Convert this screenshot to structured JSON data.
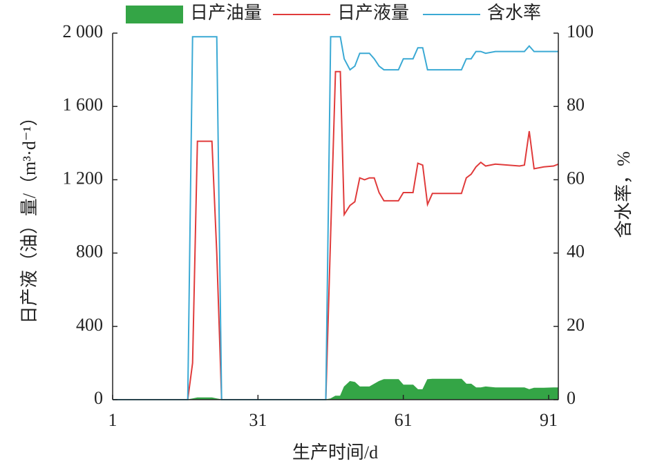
{
  "chart_data": {
    "type": "line",
    "x_label": "生产时间/d",
    "y_label": "日产液（油）量/（m³·d⁻¹）",
    "y2_label": "含水率，%",
    "xlim": [
      1,
      93
    ],
    "xticks": [
      1,
      31,
      61,
      91
    ],
    "ylim": [
      0,
      2000
    ],
    "yticks": [
      0,
      {
        "value": 400,
        "label": "400"
      },
      {
        "value": 800,
        "label": "800"
      },
      {
        "value": 1200,
        "label": "1 200"
      },
      {
        "value": 1600,
        "label": "1 600"
      },
      {
        "value": 2000,
        "label": "2 000"
      }
    ],
    "y2lim": [
      0,
      100
    ],
    "y2ticks": [
      0,
      20,
      40,
      60,
      80,
      100
    ],
    "x": [
      1,
      16.5,
      17.5,
      18.5,
      21.5,
      22.5,
      23.5,
      45,
      46,
      47,
      48,
      48.8,
      50,
      51,
      52,
      53,
      54,
      55,
      56,
      57,
      60,
      61,
      63,
      64,
      65,
      66,
      67,
      73,
      74,
      75,
      76,
      77,
      78,
      80,
      85,
      86,
      87,
      88,
      90,
      92,
      93
    ],
    "series": [
      {
        "name": "日产油量",
        "type": "area",
        "color": "#34a546",
        "values": [
          0,
          0,
          5,
          10,
          10,
          5,
          0,
          0,
          5,
          20,
          20,
          70,
          100,
          95,
          70,
          70,
          70,
          85,
          100,
          110,
          110,
          80,
          80,
          55,
          55,
          110,
          112,
          112,
          85,
          85,
          65,
          65,
          70,
          65,
          65,
          65,
          55,
          63,
          63,
          65,
          65
        ]
      },
      {
        "name": "日产液量",
        "type": "line",
        "color": "#e03a3a",
        "values": [
          0,
          0,
          200,
          1410,
          1410,
          800,
          0,
          0,
          900,
          1790,
          1790,
          1010,
          1060,
          1080,
          1210,
          1200,
          1210,
          1210,
          1130,
          1085,
          1085,
          1130,
          1130,
          1290,
          1280,
          1065,
          1125,
          1125,
          1210,
          1230,
          1270,
          1295,
          1275,
          1285,
          1275,
          1280,
          1465,
          1260,
          1270,
          1275,
          1285
        ]
      },
      {
        "name": "含水率",
        "type": "line",
        "color": "#3aa9d4",
        "axis": "y2",
        "values": [
          0,
          0,
          99,
          99,
          99,
          99,
          0,
          0,
          99,
          99,
          99,
          93,
          90,
          91,
          94.5,
          94.5,
          94.5,
          93,
          91,
          90,
          90,
          93,
          93,
          96,
          96,
          90,
          90,
          90,
          93,
          93,
          95,
          95,
          94.5,
          95,
          95,
          95,
          96.5,
          95,
          95,
          95,
          95
        ]
      }
    ]
  }
}
